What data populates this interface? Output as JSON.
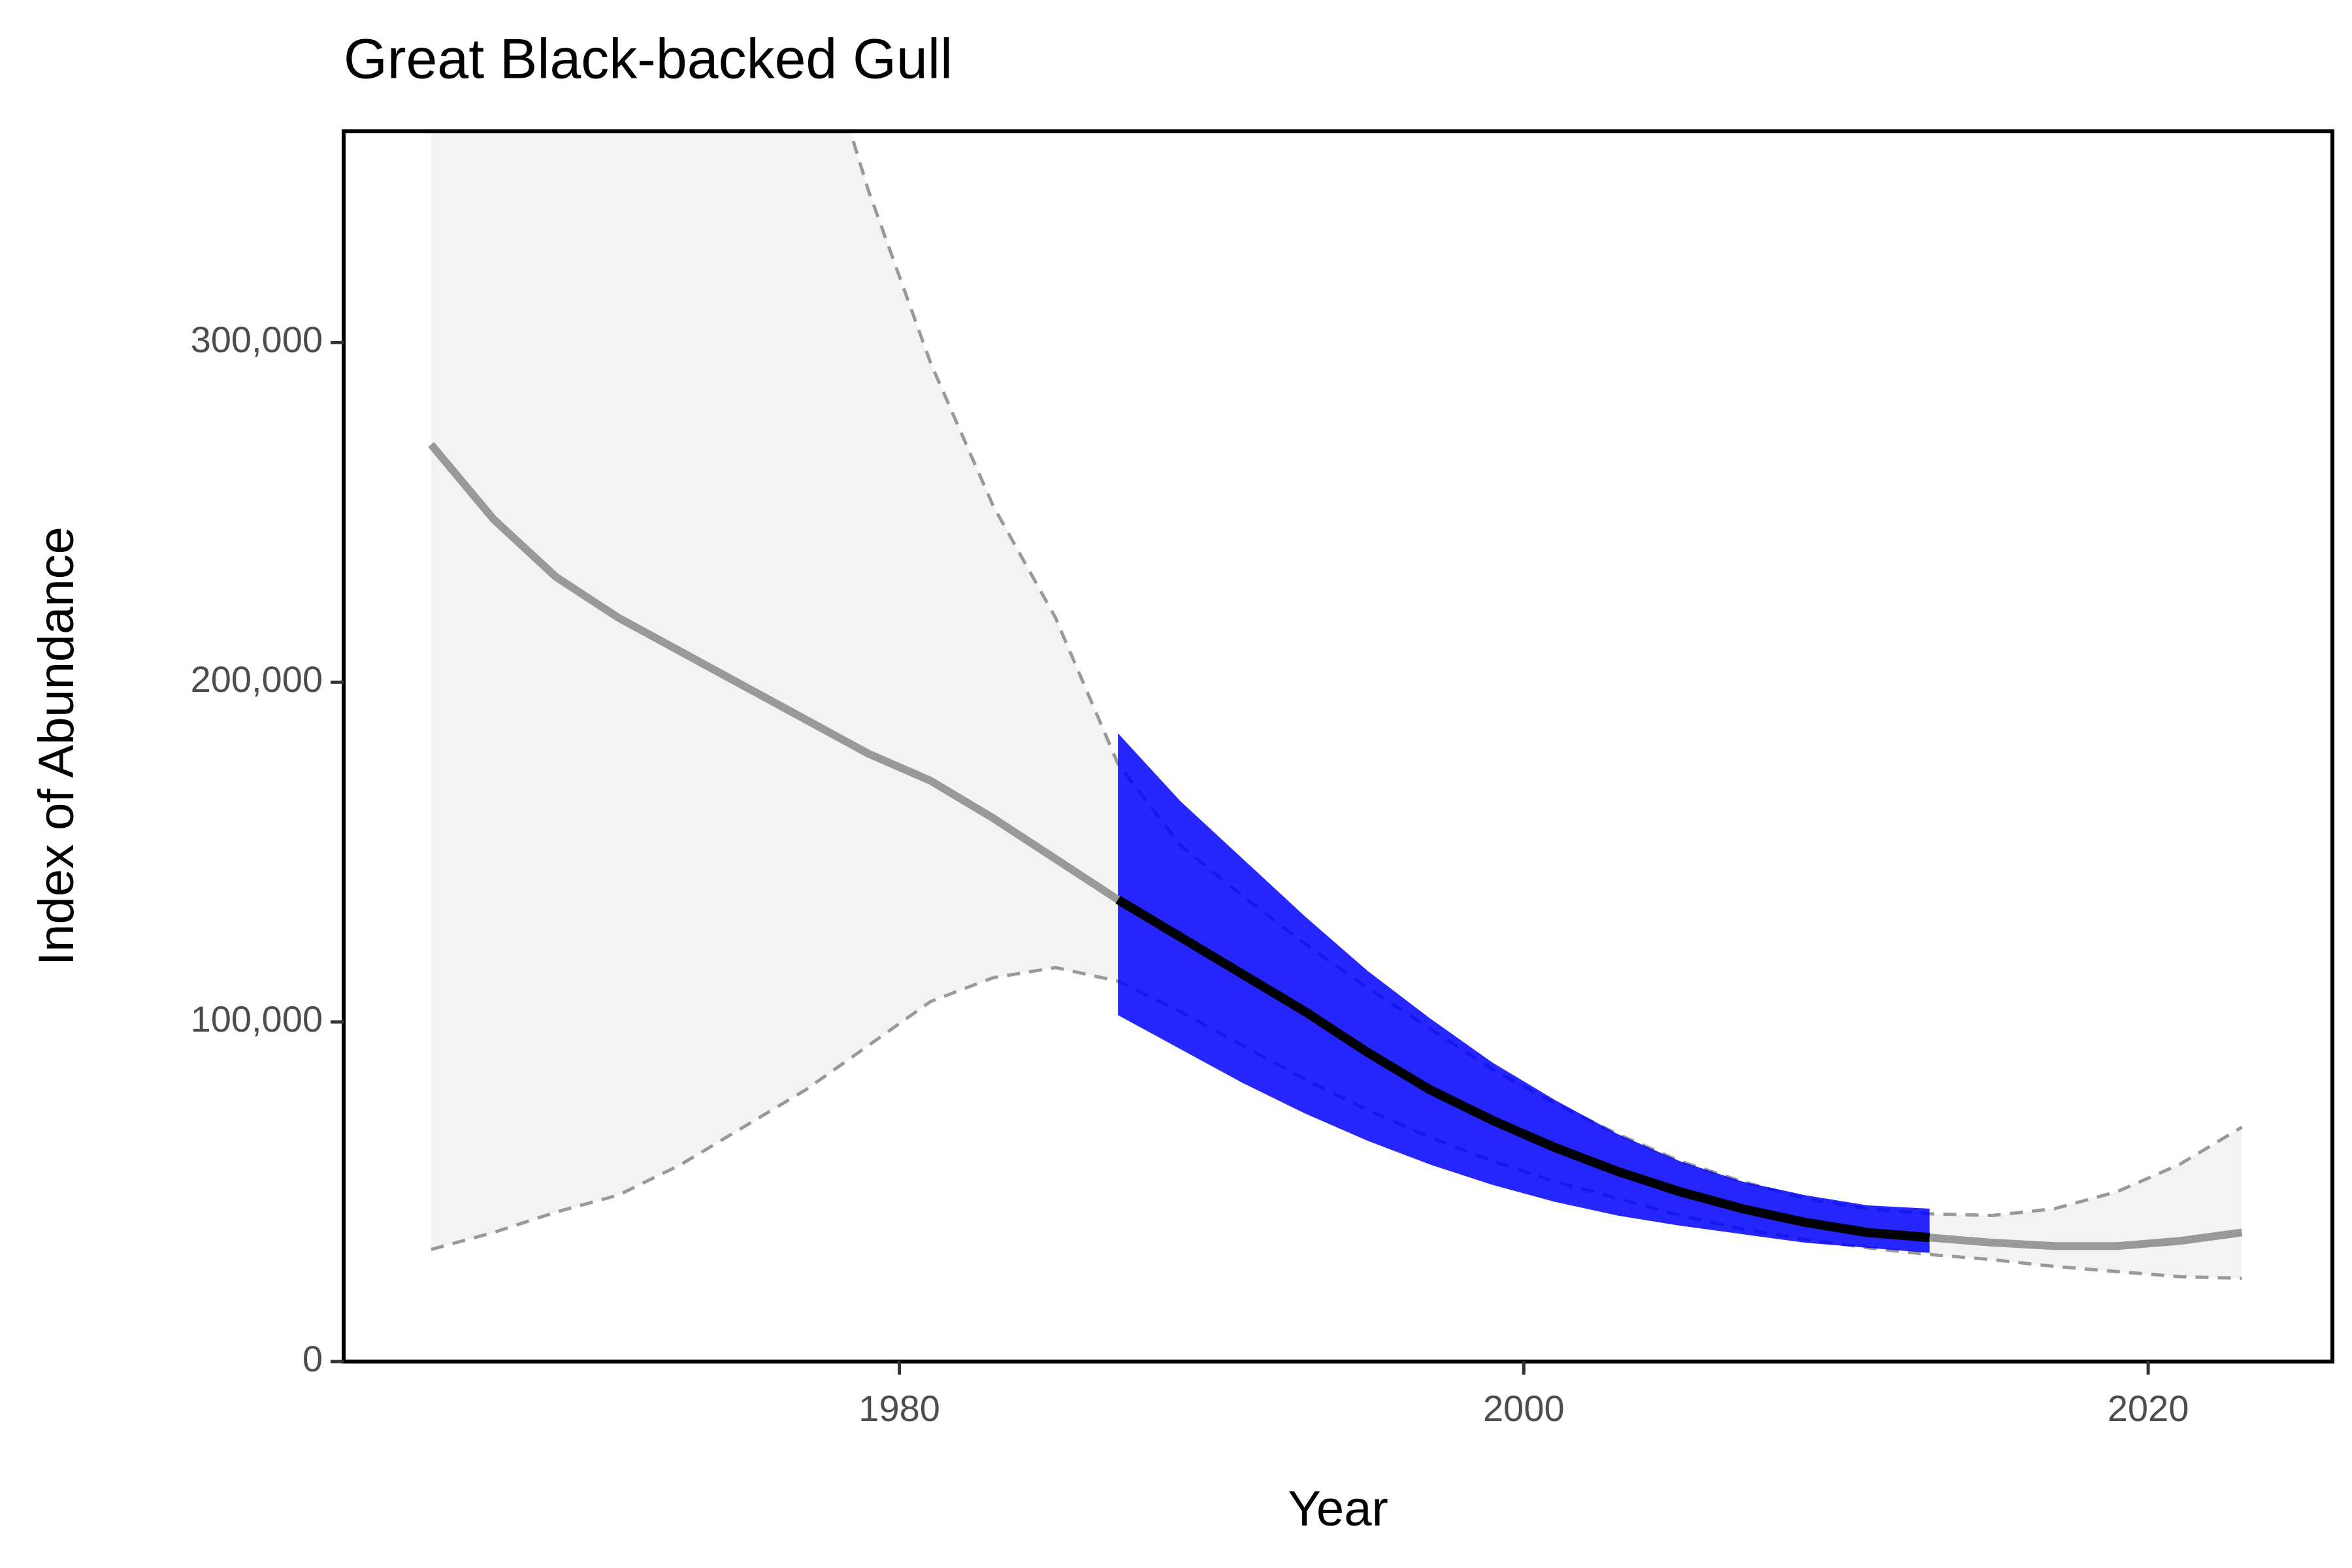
{
  "chart_data": {
    "type": "line",
    "title": "Great Black-backed Gull",
    "xlabel": "Year",
    "ylabel": "Index of Abundance",
    "x": [
      1965,
      1967,
      1969,
      1971,
      1973,
      1975,
      1977,
      1979,
      1981,
      1983,
      1985,
      1987,
      1989,
      1991,
      1993,
      1995,
      1997,
      1999,
      2001,
      2003,
      2005,
      2007,
      2009,
      2011,
      2013,
      2015,
      2017,
      2019,
      2021,
      2023
    ],
    "xlim": [
      1962.2,
      2025.9
    ],
    "xticks": [
      1980,
      2000,
      2020
    ],
    "ylim": [
      0,
      362200
    ],
    "yticks": [
      0,
      {
        "value": 100000,
        "label": "100,000"
      },
      {
        "value": 200000,
        "label": "200,000"
      },
      {
        "value": 300000,
        "label": "300,000"
      }
    ],
    "ribbons": [
      {
        "color": "#f3f3f3",
        "line_color": "#999999",
        "upper": [
          1080000,
          920000,
          780000,
          660000,
          560000,
          475000,
          405000,
          345000,
          294000,
          252000,
          219000,
          176000,
          152000,
          137000,
          123000,
          110000,
          98000,
          86000,
          76000,
          67000,
          59000,
          53000,
          48000,
          45000,
          43500,
          43000,
          45000,
          50000,
          58000,
          69000
        ],
        "lower": [
          33000,
          38000,
          44000,
          49000,
          58000,
          69000,
          80000,
          93000,
          106000,
          113000,
          116000,
          112000,
          103000,
          93000,
          83000,
          74000,
          66000,
          59000,
          53000,
          48000,
          43000,
          39000,
          36000,
          33500,
          31500,
          30000,
          28000,
          26500,
          25000,
          24500
        ]
      },
      {
        "color": "#0000ff",
        "upper": [
          null,
          null,
          null,
          null,
          null,
          null,
          null,
          null,
          null,
          null,
          null,
          185000,
          165000,
          148000,
          131000,
          115000,
          101000,
          88000,
          77000,
          67000,
          59000,
          53000,
          49000,
          46000,
          45000,
          null,
          null,
          null,
          null,
          null
        ],
        "lower": [
          null,
          null,
          null,
          null,
          null,
          null,
          null,
          null,
          null,
          null,
          null,
          102000,
          92000,
          82000,
          73000,
          65000,
          58000,
          52000,
          47000,
          43000,
          40000,
          37500,
          35000,
          33500,
          32000,
          null,
          null,
          null,
          null,
          null
        ]
      }
    ],
    "series": [
      {
        "color": "#999999",
        "values": [
          270000,
          248000,
          231000,
          219000,
          209000,
          199000,
          189000,
          179000,
          171000,
          160000,
          148000,
          136000,
          125000,
          114000,
          103000,
          91000,
          80000,
          71000,
          63000,
          56000,
          50000,
          45000,
          41000,
          38000,
          36500,
          35000,
          34000,
          34000,
          35500,
          38000
        ]
      },
      {
        "color": "#000000",
        "values": [
          null,
          null,
          null,
          null,
          null,
          null,
          null,
          null,
          null,
          null,
          null,
          136000,
          125000,
          114000,
          103000,
          91000,
          80000,
          71000,
          63000,
          56000,
          50000,
          45000,
          41000,
          38000,
          36500,
          null,
          null,
          null,
          null,
          null
        ]
      }
    ]
  }
}
